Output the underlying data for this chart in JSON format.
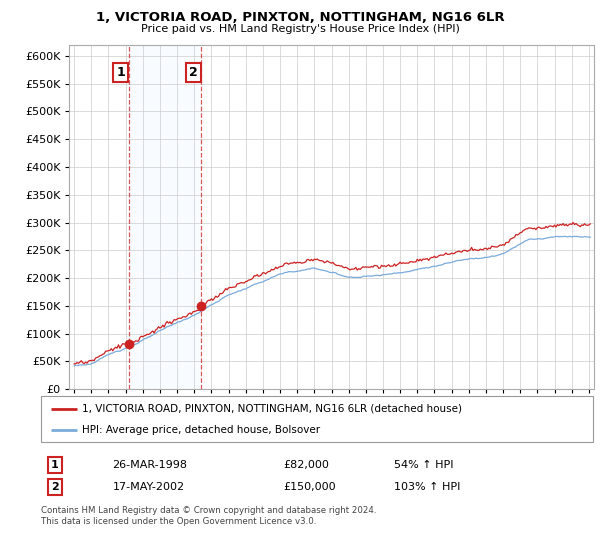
{
  "title1": "1, VICTORIA ROAD, PINXTON, NOTTINGHAM, NG16 6LR",
  "title2": "Price paid vs. HM Land Registry's House Price Index (HPI)",
  "legend_line1": "1, VICTORIA ROAD, PINXTON, NOTTINGHAM, NG16 6LR (detached house)",
  "legend_line2": "HPI: Average price, detached house, Bolsover",
  "annotation1": {
    "label": "1",
    "date": "26-MAR-1998",
    "price": "£82,000",
    "change": "54% ↑ HPI"
  },
  "annotation2": {
    "label": "2",
    "date": "17-MAY-2002",
    "price": "£150,000",
    "change": "103% ↑ HPI"
  },
  "footnote": "Contains HM Land Registry data © Crown copyright and database right 2024.\nThis data is licensed under the Open Government Licence v3.0.",
  "sale1_year": 1998.21,
  "sale1_price": 82000,
  "sale2_year": 2002.37,
  "sale2_price": 150000,
  "hpi_color": "#7aabdb",
  "price_color": "#cc2222",
  "background_color": "#ffffff",
  "grid_color": "#cccccc",
  "shade_color": "#ddeeff",
  "ylim": [
    0,
    620000
  ],
  "yticks": [
    0,
    50000,
    100000,
    150000,
    200000,
    250000,
    300000,
    350000,
    400000,
    450000,
    500000,
    550000,
    600000
  ],
  "xlim_start": 1994.7,
  "xlim_end": 2025.3,
  "fig_width": 6.0,
  "fig_height": 5.6
}
